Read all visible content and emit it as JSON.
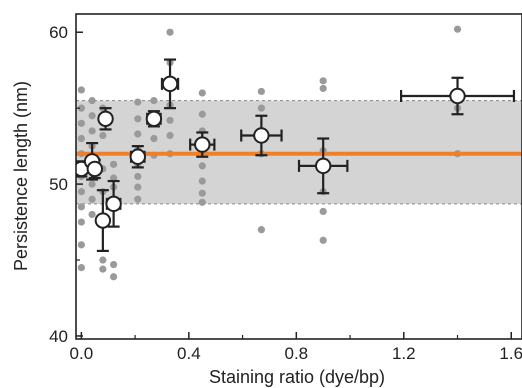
{
  "chart_data": {
    "type": "scatter",
    "title": "",
    "xlabel": "Staining ratio (dye/bp)",
    "ylabel": "Persistence length (nm)",
    "xlim": [
      -0.02,
      1.64
    ],
    "ylim": [
      39.8,
      61.2
    ],
    "x_ticks": [
      "0.0",
      "0.4",
      "0.8",
      "1.2",
      "1.6"
    ],
    "x_tick_values": [
      0.0,
      0.4,
      0.8,
      1.2,
      1.6
    ],
    "y_ticks": [
      "40",
      "50",
      "60"
    ],
    "y_tick_values": [
      40,
      50,
      60
    ],
    "mean_line": {
      "y": 52.0,
      "color": "#f07f2a"
    },
    "band": {
      "y_low": 48.7,
      "y_high": 55.5,
      "color": "#d4d4d4"
    },
    "colors": {
      "raw_points": "#9a9a9a",
      "markers": "#222222",
      "marker_fill": "#ffffff"
    },
    "mean_points": [
      {
        "x": 0.0,
        "y": 51.0,
        "xerr": 0.0,
        "yerr": 0.5
      },
      {
        "x": 0.04,
        "y": 51.5,
        "xerr": 0.0,
        "yerr": 1.2
      },
      {
        "x": 0.05,
        "y": 51.0,
        "xerr": 0.0,
        "yerr": 0.6
      },
      {
        "x": 0.08,
        "y": 47.6,
        "xerr": 0.0,
        "yerr": 2.0
      },
      {
        "x": 0.09,
        "y": 54.3,
        "xerr": 0.0,
        "yerr": 0.7
      },
      {
        "x": 0.12,
        "y": 48.7,
        "xerr": 0.025,
        "yerr": 1.5
      },
      {
        "x": 0.21,
        "y": 51.8,
        "xerr": 0.025,
        "yerr": 0.7
      },
      {
        "x": 0.27,
        "y": 54.3,
        "xerr": 0.025,
        "yerr": 0.5
      },
      {
        "x": 0.33,
        "y": 56.6,
        "xerr": 0.03,
        "yerr": 1.6
      },
      {
        "x": 0.45,
        "y": 52.6,
        "xerr": 0.045,
        "yerr": 0.8
      },
      {
        "x": 0.67,
        "y": 53.2,
        "xerr": 0.075,
        "yerr": 1.3
      },
      {
        "x": 0.9,
        "y": 51.2,
        "xerr": 0.09,
        "yerr": 1.8
      },
      {
        "x": 1.4,
        "y": 55.8,
        "xerr": 0.21,
        "yerr": 1.2
      }
    ],
    "raw_points": [
      {
        "x": 0.0,
        "y": 56.2
      },
      {
        "x": 0.0,
        "y": 55.0
      },
      {
        "x": 0.0,
        "y": 54.0
      },
      {
        "x": 0.0,
        "y": 53.0
      },
      {
        "x": 0.0,
        "y": 52.0
      },
      {
        "x": 0.0,
        "y": 50.5
      },
      {
        "x": 0.0,
        "y": 49.5
      },
      {
        "x": 0.0,
        "y": 48.5
      },
      {
        "x": 0.0,
        "y": 47.5
      },
      {
        "x": 0.0,
        "y": 46.0
      },
      {
        "x": 0.0,
        "y": 44.5
      },
      {
        "x": 0.04,
        "y": 55.5
      },
      {
        "x": 0.04,
        "y": 54.5
      },
      {
        "x": 0.04,
        "y": 53.5
      },
      {
        "x": 0.04,
        "y": 52.5
      },
      {
        "x": 0.04,
        "y": 50.0
      },
      {
        "x": 0.04,
        "y": 49.0
      },
      {
        "x": 0.04,
        "y": 48.0
      },
      {
        "x": 0.08,
        "y": 55.0
      },
      {
        "x": 0.08,
        "y": 53.2
      },
      {
        "x": 0.08,
        "y": 51.0
      },
      {
        "x": 0.08,
        "y": 49.5
      },
      {
        "x": 0.08,
        "y": 45.0
      },
      {
        "x": 0.08,
        "y": 44.4
      },
      {
        "x": 0.12,
        "y": 51.3
      },
      {
        "x": 0.12,
        "y": 50.4
      },
      {
        "x": 0.12,
        "y": 49.8
      },
      {
        "x": 0.12,
        "y": 44.7
      },
      {
        "x": 0.12,
        "y": 43.9
      },
      {
        "x": 0.21,
        "y": 55.4
      },
      {
        "x": 0.21,
        "y": 54.3
      },
      {
        "x": 0.21,
        "y": 53.3
      },
      {
        "x": 0.21,
        "y": 52.3
      },
      {
        "x": 0.21,
        "y": 51.3
      },
      {
        "x": 0.21,
        "y": 50.5
      },
      {
        "x": 0.21,
        "y": 49.8
      },
      {
        "x": 0.21,
        "y": 49.0
      },
      {
        "x": 0.27,
        "y": 55.5
      },
      {
        "x": 0.27,
        "y": 54.0
      },
      {
        "x": 0.27,
        "y": 53.0
      },
      {
        "x": 0.27,
        "y": 51.9
      },
      {
        "x": 0.33,
        "y": 60.0
      },
      {
        "x": 0.33,
        "y": 58.0
      },
      {
        "x": 0.33,
        "y": 55.2
      },
      {
        "x": 0.33,
        "y": 54.2
      },
      {
        "x": 0.33,
        "y": 53.2
      },
      {
        "x": 0.33,
        "y": 52.0
      },
      {
        "x": 0.45,
        "y": 56.0
      },
      {
        "x": 0.45,
        "y": 54.6
      },
      {
        "x": 0.45,
        "y": 53.5
      },
      {
        "x": 0.45,
        "y": 52.2
      },
      {
        "x": 0.45,
        "y": 51.2
      },
      {
        "x": 0.45,
        "y": 50.2
      },
      {
        "x": 0.45,
        "y": 49.4
      },
      {
        "x": 0.45,
        "y": 48.8
      },
      {
        "x": 0.67,
        "y": 56.1
      },
      {
        "x": 0.67,
        "y": 55.0
      },
      {
        "x": 0.67,
        "y": 52.0
      },
      {
        "x": 0.67,
        "y": 47.0
      },
      {
        "x": 0.9,
        "y": 56.8
      },
      {
        "x": 0.9,
        "y": 56.3
      },
      {
        "x": 0.9,
        "y": 52.2
      },
      {
        "x": 0.9,
        "y": 49.5
      },
      {
        "x": 0.9,
        "y": 48.2
      },
      {
        "x": 0.9,
        "y": 46.3
      },
      {
        "x": 1.4,
        "y": 60.2
      },
      {
        "x": 1.4,
        "y": 55.0
      },
      {
        "x": 1.4,
        "y": 52.0
      }
    ]
  }
}
